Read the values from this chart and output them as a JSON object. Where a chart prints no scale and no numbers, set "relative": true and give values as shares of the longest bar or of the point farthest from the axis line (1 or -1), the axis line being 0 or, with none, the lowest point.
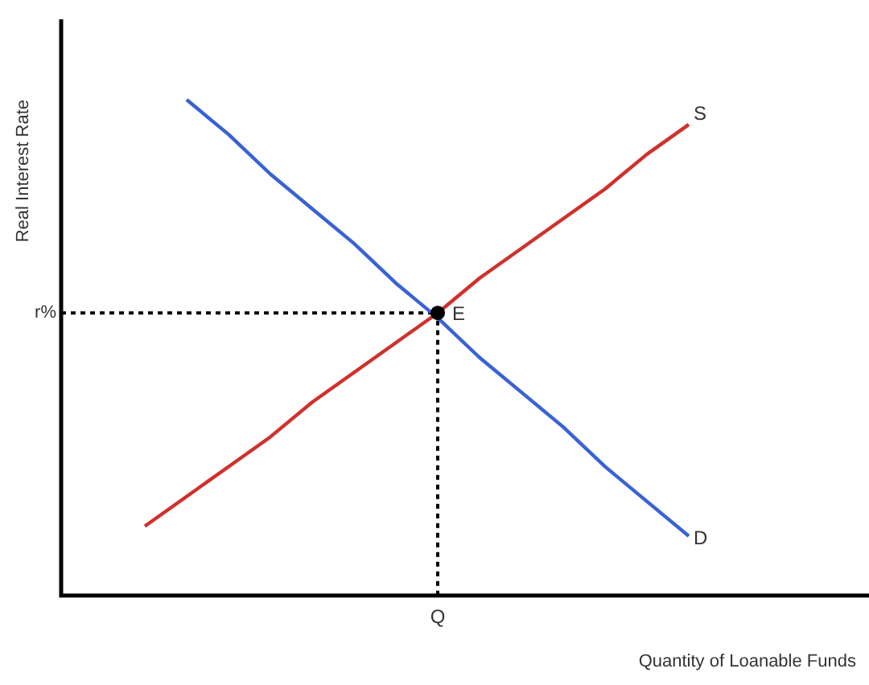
{
  "chart_data": {
    "type": "line",
    "relative": true,
    "xlabel": "Quantity of Loanable Funds",
    "ylabel": "Real Interest Rate",
    "categories": [
      null,
      null,
      null,
      null,
      null,
      null,
      null,
      null,
      null,
      null,
      null,
      null,
      null,
      null,
      null,
      null,
      null,
      null,
      null,
      null
    ],
    "series": [
      {
        "name": "S",
        "color": "#d0312d",
        "values": [
          null,
          null,
          0.14,
          0.2,
          0.26,
          0.32,
          0.39,
          0.45,
          0.51,
          0.57,
          0.64,
          0.7,
          0.76,
          0.82,
          0.89,
          0.95,
          null,
          null,
          null,
          null
        ]
      },
      {
        "name": "D",
        "color": "#3a62d6",
        "values": [
          null,
          null,
          null,
          1.0,
          0.93,
          0.85,
          0.78,
          0.71,
          0.63,
          0.56,
          0.48,
          0.41,
          0.34,
          0.26,
          0.19,
          0.12,
          null,
          null,
          null,
          null
        ]
      }
    ],
    "annotations": [
      "E"
    ],
    "ref_lines": [
      {
        "axis": "y",
        "value": 0.57,
        "label": "r%",
        "line_style": "dotted",
        "color": "#000000"
      },
      {
        "axis": "x",
        "value": "Q",
        "line_style": "dotted",
        "color": "#000000"
      }
    ],
    "tick_labels": "x",
    "grid": false,
    "legend": false,
    "line_style": "solid"
  }
}
